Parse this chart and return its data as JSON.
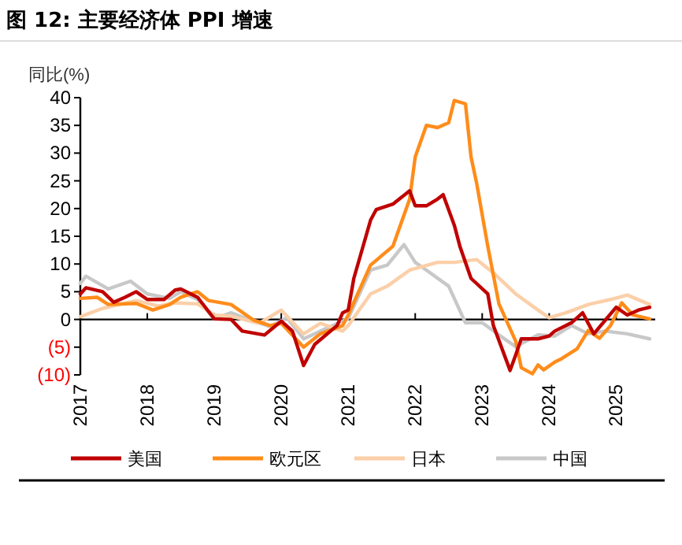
{
  "chart_data": {
    "type": "line",
    "title": "图 12: 主要经济体 PPI 增速",
    "ylabel": "同比(%)",
    "xlim": [
      "2017",
      "2025-08"
    ],
    "xticks": [
      "2017",
      "2018",
      "2019",
      "2020",
      "2021",
      "2022",
      "2023",
      "2024",
      "2025"
    ],
    "ylim": [
      -10,
      40
    ],
    "yticks": [
      {
        "value": -10,
        "label": "(10)"
      },
      {
        "value": -5,
        "label": "(5)"
      },
      0,
      5,
      10,
      15,
      20,
      25,
      30,
      35,
      40
    ],
    "legend": "bottom",
    "line_style": "solid",
    "series": [
      {
        "name": "美国",
        "color": "#c00000",
        "x": [
          "2017-01",
          "2017-02",
          "2017-05",
          "2017-07",
          "2017-09",
          "2017-11",
          "2018-01",
          "2018-04",
          "2018-06",
          "2018-07",
          "2018-10",
          "2019-01",
          "2019-04",
          "2019-06",
          "2019-10",
          "2020-01",
          "2020-03",
          "2020-05",
          "2020-07",
          "2020-11",
          "2020-12",
          "2021-01",
          "2021-02",
          "2021-05",
          "2021-06",
          "2021-09",
          "2021-12",
          "2022-01",
          "2022-03",
          "2022-05",
          "2022-06",
          "2022-08",
          "2022-09",
          "2022-11",
          "2023-02",
          "2023-03",
          "2023-06",
          "2023-07",
          "2023-08",
          "2023-11",
          "2024-01",
          "2024-02",
          "2024-05",
          "2024-07",
          "2024-09",
          "2024-11",
          "2025-01",
          "2025-03",
          "2025-05",
          "2025-07"
        ],
        "values": [
          4.6,
          5.7,
          5,
          3.1,
          4,
          5,
          3.6,
          3.6,
          5.3,
          5.5,
          4,
          0.1,
          0,
          -2.1,
          -2.8,
          -0.3,
          -2.1,
          -8.3,
          -4.5,
          -1.1,
          1.2,
          1.7,
          7.4,
          17.9,
          19.8,
          20.8,
          23.2,
          20.5,
          20.5,
          21.7,
          22.5,
          17,
          13.2,
          7.4,
          4.6,
          -1.1,
          -9.2,
          -6.4,
          -3.5,
          -3.5,
          -3,
          -2.1,
          -0.6,
          1.2,
          -2.6,
          -0.2,
          2.2,
          0.8,
          1.7,
          2.2
        ]
      },
      {
        "name": "欧元区",
        "color": "#ff8c1a",
        "x": [
          "2017-01",
          "2017-04",
          "2017-06",
          "2017-11",
          "2018-02",
          "2018-05",
          "2018-07",
          "2018-10",
          "2018-12",
          "2019-04",
          "2019-08",
          "2019-11",
          "2020-01",
          "2020-05",
          "2020-08",
          "2020-12",
          "2021-01",
          "2021-05",
          "2021-09",
          "2021-12",
          "2022-01",
          "2022-03",
          "2022-05",
          "2022-07",
          "2022-08",
          "2022-10",
          "2022-11",
          "2022-12",
          "2023-02",
          "2023-04",
          "2023-07",
          "2023-08",
          "2023-10",
          "2023-11",
          "2023-12",
          "2024-02",
          "2024-03",
          "2024-06",
          "2024-08",
          "2024-10",
          "2024-12",
          "2025-02",
          "2025-04",
          "2025-07"
        ],
        "values": [
          3.8,
          4,
          2.7,
          2.9,
          1.7,
          2.7,
          4,
          5,
          3.4,
          2.7,
          -0.1,
          -1.1,
          -0.7,
          -5,
          -2.6,
          -1.1,
          0.8,
          9.8,
          13.2,
          21.7,
          29.3,
          35,
          34.6,
          35.5,
          39.5,
          38.9,
          29.3,
          24.6,
          13.2,
          2.8,
          -3.9,
          -8.7,
          -9.8,
          -8.2,
          -9.1,
          -7.7,
          -7.2,
          -5.3,
          -2,
          -3.4,
          -1.1,
          3,
          0.8,
          0.1
        ]
      },
      {
        "name": "日本",
        "color": "#fbcfa8",
        "x": [
          "2017-01",
          "2017-05",
          "2017-11",
          "2018-03",
          "2018-06",
          "2018-10",
          "2019-01",
          "2019-04",
          "2019-09",
          "2020-01",
          "2020-05",
          "2020-08",
          "2020-12",
          "2021-01",
          "2021-05",
          "2021-08",
          "2021-12",
          "2022-05",
          "2022-08",
          "2022-12",
          "2023-03",
          "2023-07",
          "2023-11",
          "2024-01",
          "2024-04",
          "2024-08",
          "2024-12",
          "2025-03",
          "2025-07"
        ],
        "values": [
          0.5,
          2,
          3.4,
          2.4,
          3,
          2.8,
          0.8,
          0.6,
          -0.7,
          1.7,
          -2.6,
          -0.7,
          -2.1,
          -1.1,
          4.6,
          6,
          8.9,
          10.3,
          10.3,
          10.8,
          8.4,
          4.6,
          1.7,
          0.3,
          1.2,
          2.7,
          3.6,
          4.4,
          2.7
        ]
      },
      {
        "name": "中国",
        "color": "#c8c8c8",
        "x": [
          "2017-01",
          "2017-02",
          "2017-06",
          "2017-10",
          "2018-01",
          "2018-05",
          "2018-07",
          "2018-10",
          "2019-01",
          "2019-04",
          "2019-08",
          "2019-11",
          "2020-02",
          "2020-05",
          "2020-08",
          "2020-12",
          "2021-01",
          "2021-05",
          "2021-08",
          "2021-11",
          "2022-01",
          "2022-03",
          "2022-07",
          "2022-10",
          "2023-01",
          "2023-04",
          "2023-07",
          "2023-11",
          "2024-02",
          "2024-05",
          "2024-08",
          "2024-11",
          "2025-03",
          "2025-07"
        ],
        "values": [
          6.5,
          7.8,
          5.5,
          6.9,
          4.6,
          3.8,
          5,
          3.6,
          0.1,
          1.2,
          -0.3,
          -1.3,
          0.3,
          -3.5,
          -2.1,
          -0.3,
          0.2,
          8.9,
          9.8,
          13.5,
          10.3,
          8.9,
          6,
          -0.6,
          -0.6,
          -2.8,
          -4.9,
          -2.8,
          -3,
          -1.1,
          -2.6,
          -2.1,
          -2.6,
          -3.5
        ]
      }
    ]
  }
}
